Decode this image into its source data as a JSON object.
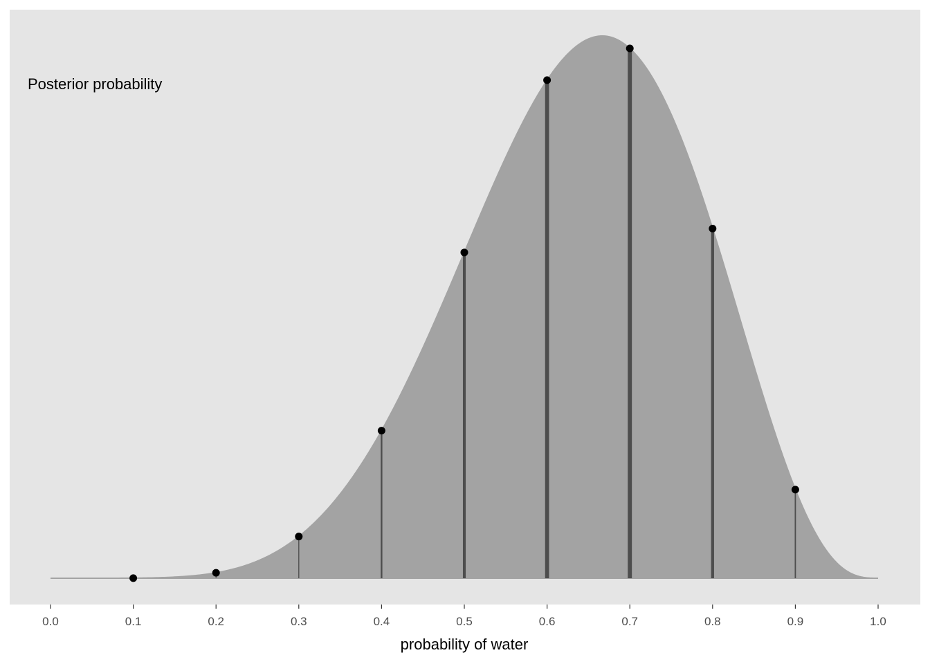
{
  "chart_data": {
    "type": "area",
    "title": "",
    "xlabel": "probability of water",
    "ylabel": "",
    "xlim": [
      0,
      1
    ],
    "x_ticks": [
      "0.0",
      "0.1",
      "0.2",
      "0.3",
      "0.4",
      "0.5",
      "0.6",
      "0.7",
      "0.8",
      "0.9",
      "1.0"
    ],
    "grid": false,
    "annotation": "Posterior probability",
    "curve": {
      "distribution": "beta",
      "a": 7,
      "b": 4
    },
    "points": {
      "x": [
        0.1,
        0.2,
        0.3,
        0.4,
        0.5,
        0.6,
        0.7,
        0.8,
        0.9
      ],
      "y": [
        6e-05,
        0.00275,
        0.021,
        0.0743,
        0.164,
        0.2507,
        0.2667,
        0.176,
        0.0446
      ]
    },
    "colors": {
      "panel": "#e5e5e5",
      "area": "#a3a3a3",
      "segment": "#4d4d4d",
      "point": "#000000"
    }
  }
}
